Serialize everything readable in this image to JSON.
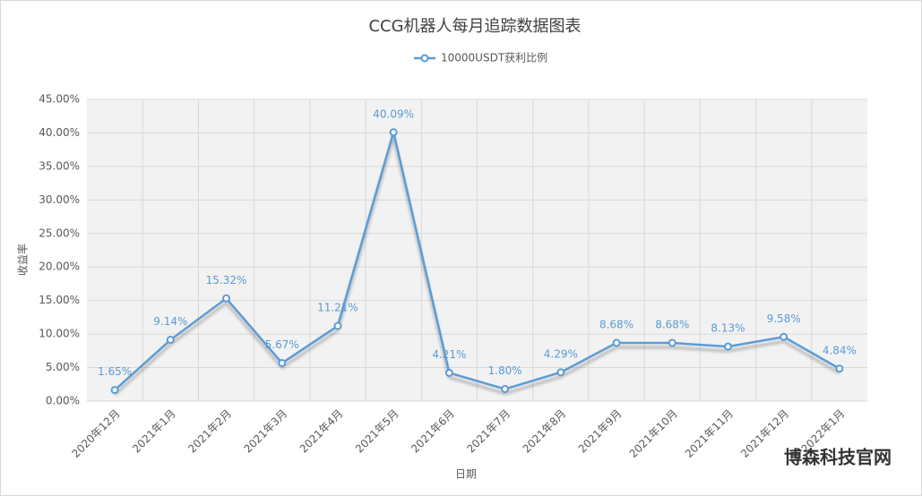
{
  "chart_data": {
    "type": "line",
    "title": "CCG机器人每月追踪数据图表",
    "categories": [
      "2020年12月",
      "2021年1月",
      "2021年2月",
      "2021年3月",
      "2021年4月",
      "2021年5月",
      "2021年6月",
      "2021年7月",
      "2021年8月",
      "2021年9月",
      "2021年10月",
      "2021年11月",
      "2021年12月",
      "2022年1月"
    ],
    "series": [
      {
        "name": "10000USDT获利比例",
        "color": "#5b9bd5",
        "values": [
          1.65,
          9.14,
          15.32,
          5.67,
          11.21,
          40.09,
          4.21,
          1.8,
          4.29,
          8.68,
          8.68,
          8.13,
          9.58,
          4.84
        ],
        "value_labels": [
          "1.65%",
          "9.14%",
          "15.32%",
          "5.67%",
          "11.21%",
          "40.09%",
          "4.21%",
          "1.80%",
          "4.29%",
          "8.68%",
          "8.68%",
          "8.13%",
          "9.58%",
          "4.84%"
        ]
      }
    ],
    "ylim": [
      0,
      45
    ],
    "yticks": [
      {
        "value": 0,
        "label": "0.00%"
      },
      {
        "value": 5,
        "label": "5.00%"
      },
      {
        "value": 10,
        "label": "10.00%"
      },
      {
        "value": 15,
        "label": "15.00%"
      },
      {
        "value": 20,
        "label": "20.00%"
      },
      {
        "value": 25,
        "label": "25.00%"
      },
      {
        "value": 30,
        "label": "30.00%"
      },
      {
        "value": 35,
        "label": "35.00%"
      },
      {
        "value": 40,
        "label": "40.00%"
      },
      {
        "value": 45,
        "label": "45.00%"
      }
    ],
    "x_label": "日期",
    "y_label": "收益率",
    "grid": true,
    "legend": "top",
    "watermark": "博森科技官网"
  }
}
